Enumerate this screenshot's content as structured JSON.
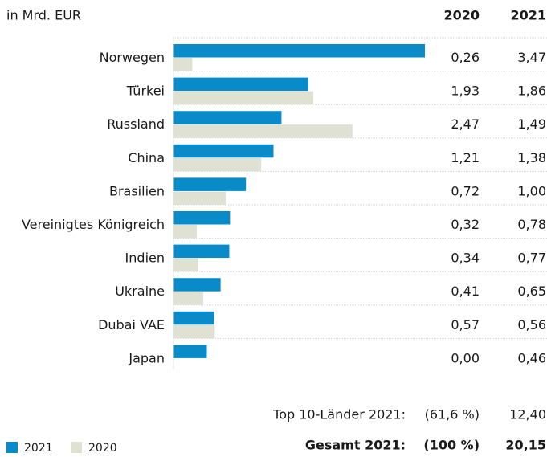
{
  "chart_data": {
    "type": "bar",
    "orientation": "horizontal",
    "unit_label": "in Mrd. EUR",
    "categories": [
      "Norwegen",
      "Türkei",
      "Russland",
      "China",
      "Brasilien",
      "Vereinigtes Königreich",
      "Indien",
      "Ukraine",
      "Dubai VAE",
      "Japan"
    ],
    "series": [
      {
        "name": "2021",
        "color": "#0a8bc9",
        "values": [
          3.47,
          1.86,
          1.49,
          1.38,
          1.0,
          0.78,
          0.77,
          0.65,
          0.56,
          0.46
        ],
        "value_labels": [
          "3,47",
          "1,86",
          "1,49",
          "1,38",
          "1,00",
          "0,78",
          "0,77",
          "0,65",
          "0,56",
          "0,46"
        ]
      },
      {
        "name": "2020",
        "color": "#dfe1d3",
        "values": [
          0.26,
          1.93,
          2.47,
          1.21,
          0.72,
          0.32,
          0.34,
          0.41,
          0.57,
          0.0
        ],
        "value_labels": [
          "0,26",
          "1,93",
          "2,47",
          "1,21",
          "0,72",
          "0,32",
          "0,34",
          "0,41",
          "0,57",
          "0,00"
        ]
      }
    ],
    "summary": [
      {
        "label": "Top 10-Länder 2021:",
        "share": "(61,6 %)",
        "value": "12,40"
      },
      {
        "label": "Gesamt 2021:",
        "share": "(100 %)",
        "value": "20,15"
      }
    ]
  }
}
